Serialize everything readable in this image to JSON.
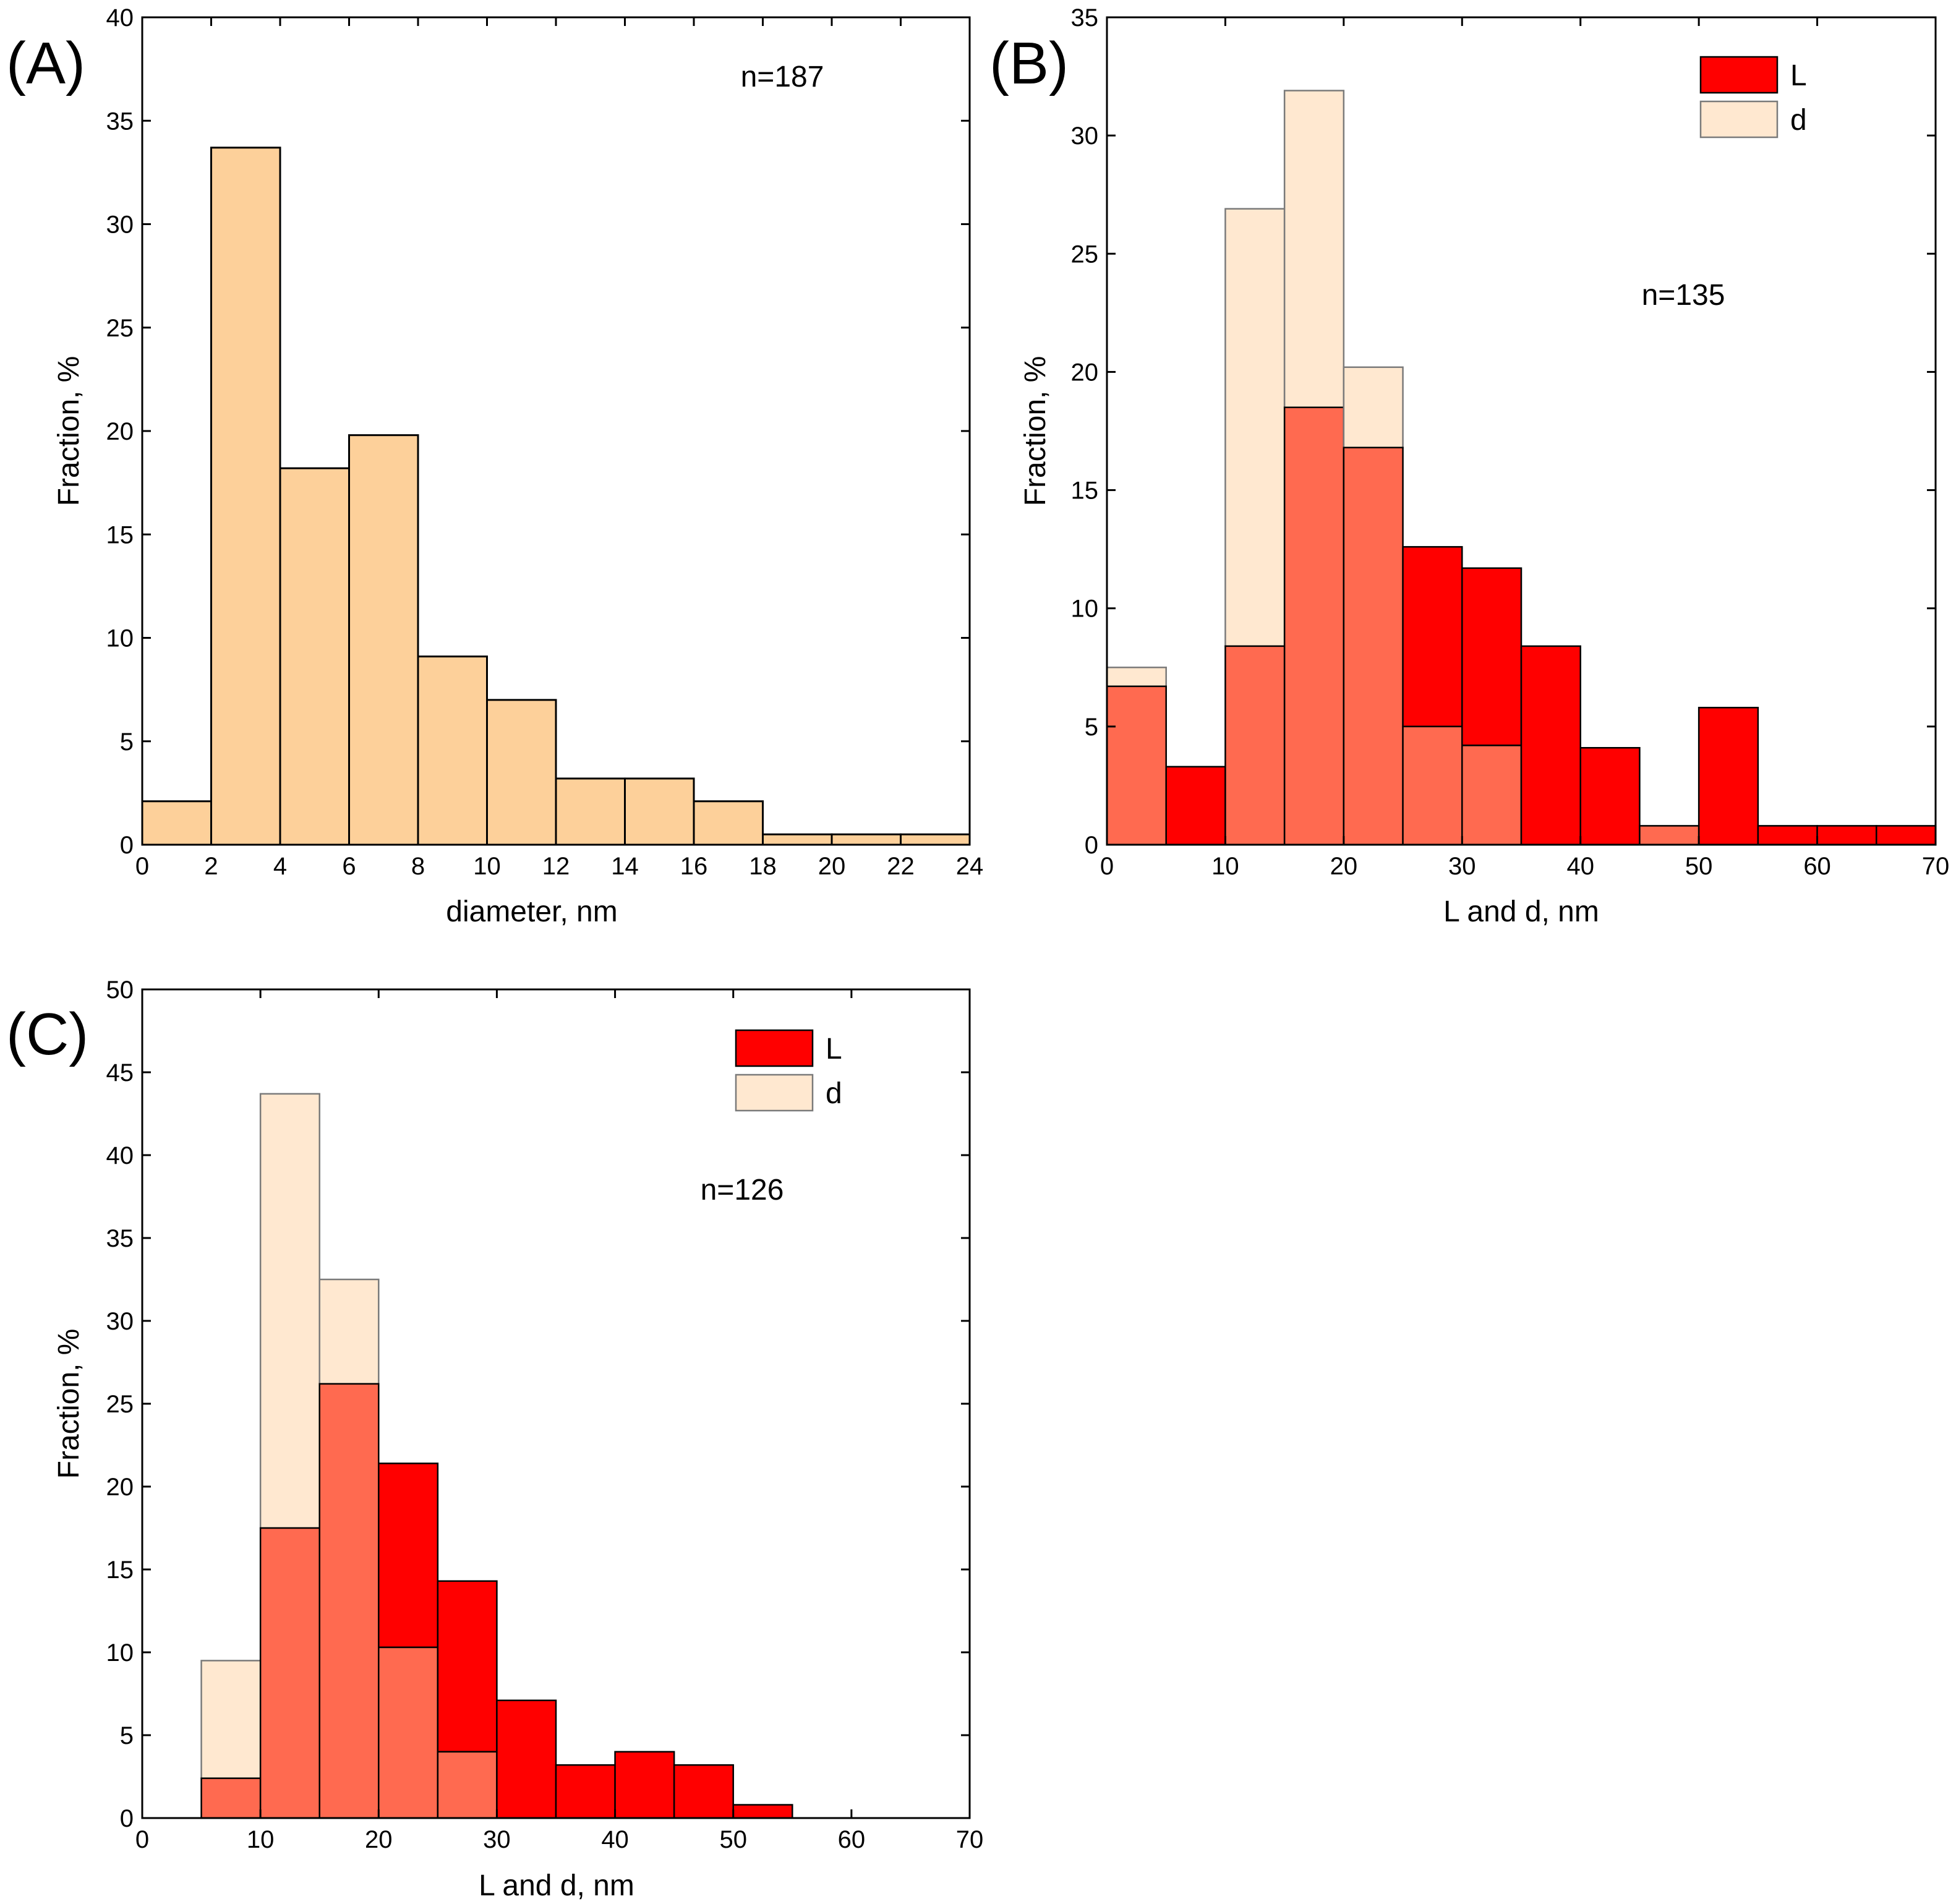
{
  "chart_data": [
    {
      "id": "A",
      "panel_label": "(A)",
      "type": "bar",
      "subtype": "histogram",
      "xlabel": "diameter, nm",
      "ylabel": "Fraction, %",
      "xlim": [
        0,
        24
      ],
      "ylim": [
        0,
        40
      ],
      "xticks": [
        0,
        2,
        4,
        6,
        8,
        10,
        12,
        14,
        16,
        18,
        20,
        22,
        24
      ],
      "yticks": [
        0,
        5,
        10,
        15,
        20,
        25,
        30,
        35,
        40
      ],
      "bin_width": 2,
      "annotation": "n=187",
      "series": [
        {
          "name": "diameter",
          "color": "#fdd09a",
          "bins_start": [
            0,
            2,
            4,
            6,
            8,
            10,
            12,
            14,
            16,
            18,
            20,
            22
          ],
          "values": [
            2.1,
            33.7,
            18.2,
            19.8,
            9.1,
            7.0,
            3.2,
            3.2,
            2.1,
            0.5,
            0.5,
            0.5
          ]
        }
      ]
    },
    {
      "id": "B",
      "panel_label": "(B)",
      "type": "bar",
      "subtype": "overlaid-histogram",
      "xlabel": "L and d, nm",
      "ylabel": "Fraction, %",
      "xlim": [
        0,
        70
      ],
      "ylim": [
        0,
        35
      ],
      "xticks": [
        0,
        10,
        20,
        30,
        40,
        50,
        60,
        70
      ],
      "yticks": [
        0,
        5,
        10,
        15,
        20,
        25,
        30,
        35
      ],
      "bin_width": 5,
      "annotation": "n=135",
      "legend": [
        "L",
        "d"
      ],
      "overlap_color": "#ff6a50",
      "series": [
        {
          "name": "L",
          "color": "#ff0000",
          "bins_start": [
            0,
            5,
            10,
            15,
            20,
            25,
            30,
            35,
            40,
            45,
            50,
            55,
            60,
            65
          ],
          "values": [
            6.7,
            3.3,
            8.4,
            18.5,
            16.8,
            12.6,
            11.7,
            8.4,
            4.1,
            0.8,
            5.8,
            0.8,
            0.8,
            0.8
          ]
        },
        {
          "name": "d",
          "color": "#ffe8d0",
          "bins_start": [
            0,
            5,
            10,
            15,
            20,
            25,
            30,
            35,
            40,
            45,
            50,
            55,
            60,
            65
          ],
          "values": [
            7.5,
            0,
            26.9,
            31.9,
            20.2,
            5.0,
            4.2,
            0,
            0,
            0.8,
            0,
            0,
            0,
            0
          ]
        }
      ]
    },
    {
      "id": "C",
      "panel_label": "(C)",
      "type": "bar",
      "subtype": "overlaid-histogram",
      "xlabel": "L and d, nm",
      "ylabel": "Fraction, %",
      "xlim": [
        0,
        70
      ],
      "ylim": [
        0,
        50
      ],
      "xticks": [
        0,
        10,
        20,
        30,
        40,
        50,
        60,
        70
      ],
      "yticks": [
        0,
        5,
        10,
        15,
        20,
        25,
        30,
        35,
        40,
        45,
        50
      ],
      "bin_width": 5,
      "annotation": "n=126",
      "legend": [
        "L",
        "d"
      ],
      "overlap_color": "#ff6a50",
      "series": [
        {
          "name": "L",
          "color": "#ff0000",
          "bins_start": [
            5,
            10,
            15,
            20,
            25,
            30,
            35,
            40,
            45,
            50
          ],
          "values": [
            2.4,
            17.5,
            26.2,
            21.4,
            14.3,
            7.1,
            3.2,
            4.0,
            3.2,
            0.8
          ]
        },
        {
          "name": "d",
          "color": "#ffe8d0",
          "bins_start": [
            5,
            10,
            15,
            20,
            25,
            30,
            35,
            40,
            45,
            50
          ],
          "values": [
            9.5,
            43.7,
            32.5,
            10.3,
            4.0,
            0,
            0,
            0,
            0,
            0
          ]
        }
      ]
    }
  ]
}
